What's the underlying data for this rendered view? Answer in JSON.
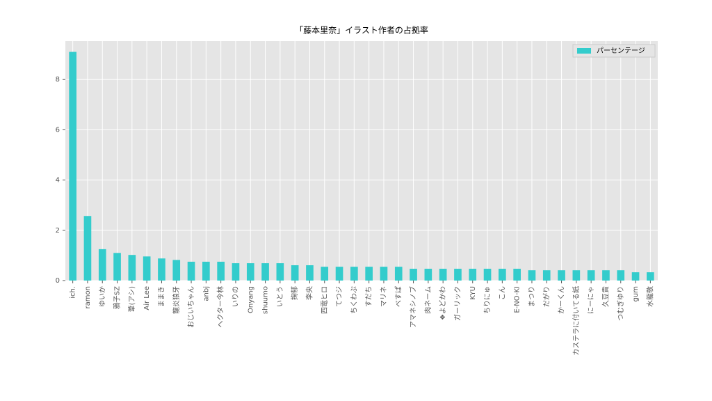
{
  "chart_data": {
    "type": "bar",
    "title": "「藤本里奈」イラスト作者の占拠率",
    "categories": [
      "ich.",
      "ramon",
      "ゆいか",
      "鴉子SZ",
      "葦(アシ)",
      "Air Lee",
      "ままき",
      "龍炎狼牙",
      "おじいちゃん",
      "anbj",
      "ヘクター今林",
      "いりの",
      "Onyang",
      "shuumo",
      "いとう",
      "掬郁",
      "李央",
      "四電ヒロ",
      "てつジ",
      "ちくわぶ",
      "すだち",
      "マリネ",
      "べすぱ",
      "アマネシノブ",
      "肉ネーム",
      "❖よどかわ",
      "ガーリック",
      "KYU",
      "ちりにゅ",
      "こん",
      "E-NO-KI",
      "まつり",
      "だがり",
      "かーくん",
      "カステラに付いてる紙",
      "にーにゃ",
      "久豆貴",
      "つむぎゆり",
      "gum",
      "水龍敬"
    ],
    "series": [
      {
        "name": "パーセンテージ",
        "color": "#33cccc",
        "values": [
          9.1,
          2.57,
          1.25,
          1.1,
          1.02,
          0.96,
          0.88,
          0.82,
          0.75,
          0.75,
          0.75,
          0.69,
          0.69,
          0.69,
          0.69,
          0.61,
          0.61,
          0.55,
          0.55,
          0.55,
          0.55,
          0.55,
          0.55,
          0.47,
          0.47,
          0.47,
          0.47,
          0.47,
          0.47,
          0.47,
          0.47,
          0.41,
          0.41,
          0.41,
          0.41,
          0.41,
          0.41,
          0.41,
          0.33,
          0.33
        ]
      }
    ],
    "ylim": [
      0,
      9.53
    ],
    "yticks": [
      0,
      2,
      4,
      6,
      8
    ],
    "grid": true,
    "legend": "upper right"
  }
}
